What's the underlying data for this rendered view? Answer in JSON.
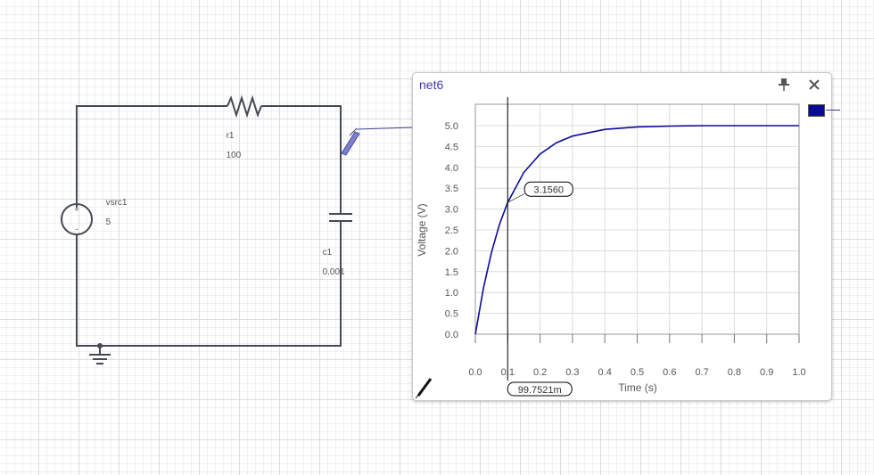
{
  "colors": {
    "wire": "#454a52",
    "probe": "#4b4ea0",
    "trace": "#0a0a9a",
    "title": "#3f3ca8"
  },
  "schematic": {
    "resistor": {
      "name": "r1",
      "value": "100"
    },
    "source": {
      "name": "vsrc1",
      "value": "5"
    },
    "capacitor": {
      "name": "c1",
      "value": "0.001"
    }
  },
  "probe_window": {
    "title": "net6",
    "pin_icon": "pin-icon",
    "close_icon": "close-icon",
    "probe_tool_icon": "probe-pen-icon",
    "cursor": {
      "x_readout": "99.7521m",
      "y_readout": "3.1560"
    }
  },
  "chart_data": {
    "type": "line",
    "xlabel": "Time (s)",
    "ylabel": "Voltage (V)",
    "xlim": [
      0,
      1
    ],
    "ylim": [
      0,
      5
    ],
    "x_ticks": [
      "0.0",
      "0.1",
      "0.2",
      "0.3",
      "0.4",
      "0.5",
      "0.6",
      "0.7",
      "0.8",
      "0.9",
      "1.0"
    ],
    "y_ticks": [
      "0.0",
      "0.5",
      "1.0",
      "1.5",
      "2.0",
      "2.5",
      "3.0",
      "3.5",
      "4.0",
      "4.5",
      "5.0"
    ],
    "grid": true,
    "legend": "right",
    "series": [
      {
        "x": [
          0,
          0.025,
          0.05,
          0.075,
          0.1,
          0.15,
          0.2,
          0.25,
          0.3,
          0.4,
          0.5,
          0.6,
          0.7,
          0.8,
          0.9,
          1.0
        ],
        "y": [
          0,
          1.11,
          1.97,
          2.64,
          3.16,
          3.88,
          4.32,
          4.59,
          4.75,
          4.91,
          4.97,
          4.99,
          5.0,
          5.0,
          5.0,
          5.0
        ]
      }
    ],
    "cursor_x": 0.0998,
    "cursor_y": 3.156
  }
}
